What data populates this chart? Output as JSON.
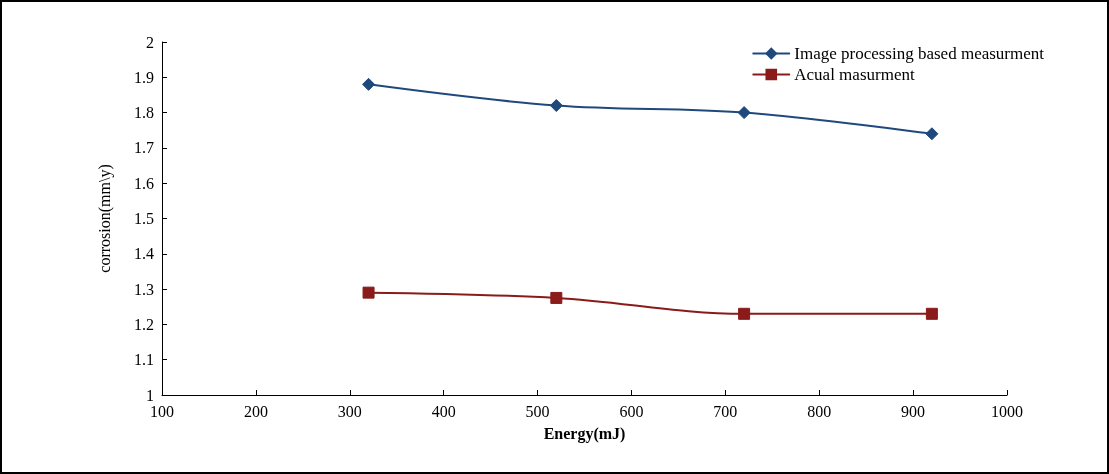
{
  "chart_data": {
    "type": "line",
    "xlabel": "Energy(mJ)",
    "ylabel": "corrosion(mm\\y)",
    "x": [
      320,
      520,
      720,
      920
    ],
    "series": [
      {
        "name": "Image processing based measurment",
        "color": "#1f497d",
        "marker": "diamond",
        "values": [
          1.88,
          1.82,
          1.8,
          1.74
        ]
      },
      {
        "name": "Acual masurment",
        "color": "#8b1a1a",
        "marker": "square",
        "values": [
          1.29,
          1.275,
          1.23,
          1.23
        ]
      }
    ],
    "xlim": [
      100,
      1000
    ],
    "xticks": [
      100,
      200,
      300,
      400,
      500,
      600,
      700,
      800,
      900,
      1000
    ],
    "ylim": [
      1,
      2
    ],
    "yticks": [
      1,
      1.1,
      1.2,
      1.3,
      1.4,
      1.5,
      1.6,
      1.7,
      1.8,
      1.9,
      2
    ],
    "grid": false,
    "legend": "top right",
    "line_style": "solid"
  }
}
